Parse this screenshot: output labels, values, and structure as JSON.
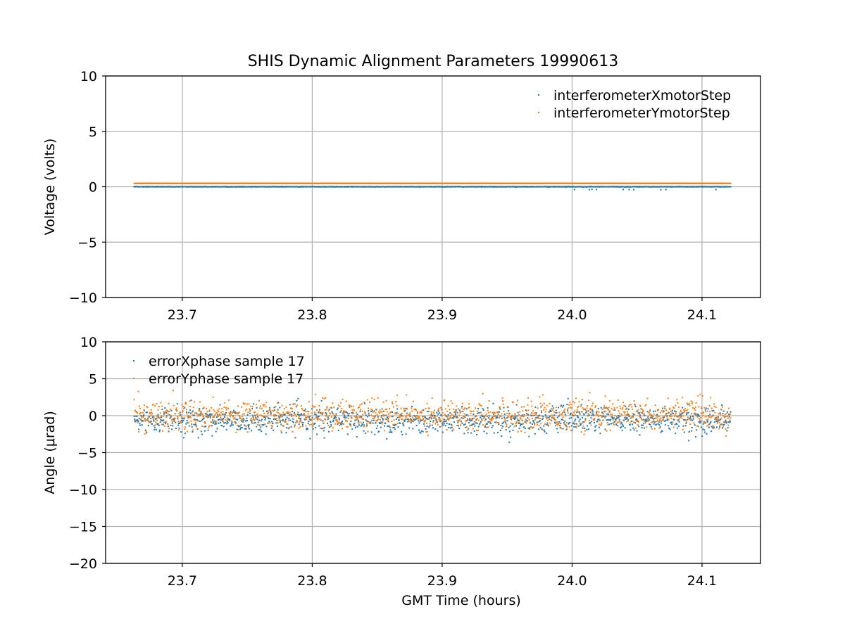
{
  "title": "SHIS Dynamic Alignment Parameters 19990613",
  "chart_data": [
    {
      "type": "scatter",
      "ylabel": "Voltage (volts)",
      "xlabel": "",
      "xlim": [
        23.641,
        24.145
      ],
      "ylim": [
        -10,
        10
      ],
      "xticks": [
        23.7,
        23.8,
        23.9,
        24.0,
        24.1
      ],
      "xtick_labels": [
        "23.7",
        "23.8",
        "23.9",
        "24.0",
        "24.1"
      ],
      "yticks": [
        -10,
        -5,
        0,
        5,
        10
      ],
      "ytick_labels": [
        "−10",
        "−5",
        "0",
        "5",
        "10"
      ],
      "grid": true,
      "legend_position": "top-right",
      "x_range": [
        23.663,
        24.122
      ],
      "series": [
        {
          "name": "interferometerXmotorStep",
          "color": "#1f77b4",
          "values_summary": {
            "level": 0.0,
            "noise": 0.05
          }
        },
        {
          "name": "interferometerYmotorStep",
          "color": "#ff7f0e",
          "values_summary": {
            "level": 0.3,
            "noise": 0.02
          }
        }
      ]
    },
    {
      "type": "scatter",
      "ylabel": "Angle (μrad)",
      "xlabel": "GMT Time (hours)",
      "xlim": [
        23.641,
        24.145
      ],
      "ylim": [
        -20,
        10
      ],
      "xticks": [
        23.7,
        23.8,
        23.9,
        24.0,
        24.1
      ],
      "xtick_labels": [
        "23.7",
        "23.8",
        "23.9",
        "24.0",
        "24.1"
      ],
      "yticks": [
        -20,
        -15,
        -10,
        -5,
        0,
        5,
        10
      ],
      "ytick_labels": [
        "−20",
        "−15",
        "−10",
        "−5",
        "0",
        "5",
        "10"
      ],
      "grid": true,
      "legend_position": "top-left",
      "x_range": [
        23.663,
        24.122
      ],
      "series": [
        {
          "name": "errorXphase sample 17",
          "color": "#1f77b4",
          "values_summary": {
            "mean": -0.6,
            "std": 0.9,
            "min": -3.6,
            "max": 2.3
          }
        },
        {
          "name": "errorYphase sample 17",
          "color": "#ff7f0e",
          "values_summary": {
            "mean": 0.1,
            "std": 1.0,
            "min": -3.3,
            "max": 3.4
          }
        }
      ]
    }
  ]
}
